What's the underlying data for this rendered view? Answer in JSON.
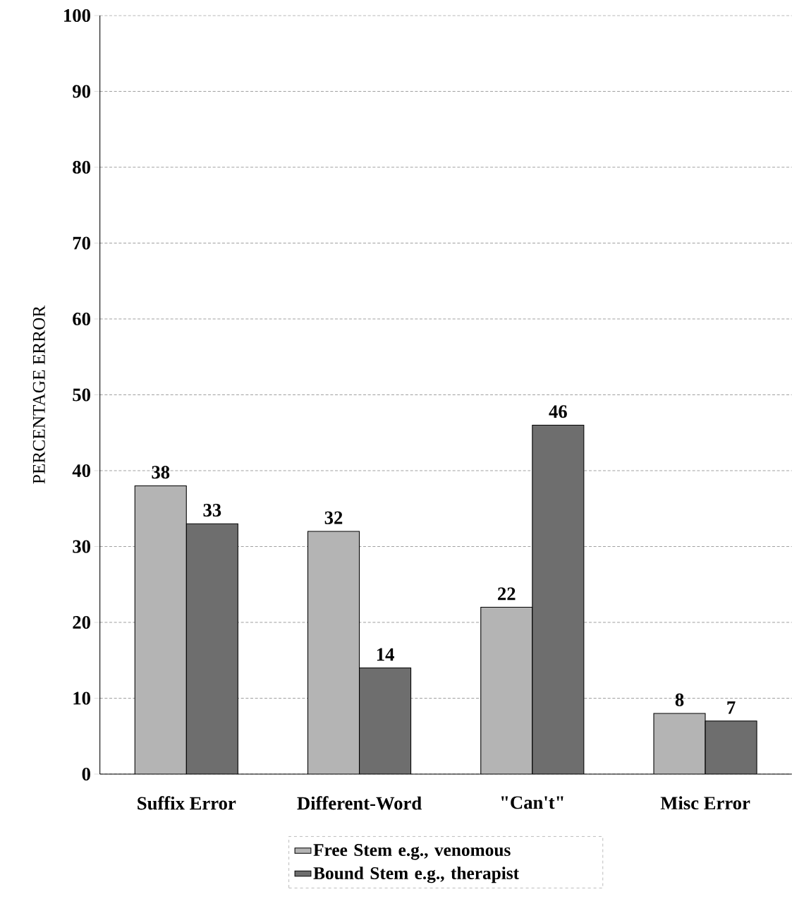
{
  "chart_data": {
    "type": "bar",
    "ylabel": "PERCENTAGE ERROR",
    "categories": [
      "Suffix Error",
      "Different-Word",
      "\"Can't\"",
      "Misc Error"
    ],
    "series": [
      {
        "name": "Free Stem   e.g., venomous",
        "color": "#b4b4b4",
        "values": [
          38,
          32,
          22,
          8
        ]
      },
      {
        "name": "Bound Stem   e.g., therapist",
        "color": "#6e6e6e",
        "values": [
          33,
          14,
          46,
          7
        ]
      }
    ],
    "ylim": [
      0,
      100
    ],
    "yticks": [
      0,
      10,
      20,
      30,
      40,
      50,
      60,
      70,
      80,
      90,
      100
    ],
    "grid": "y",
    "legend": "bottom",
    "data_labels": true
  }
}
